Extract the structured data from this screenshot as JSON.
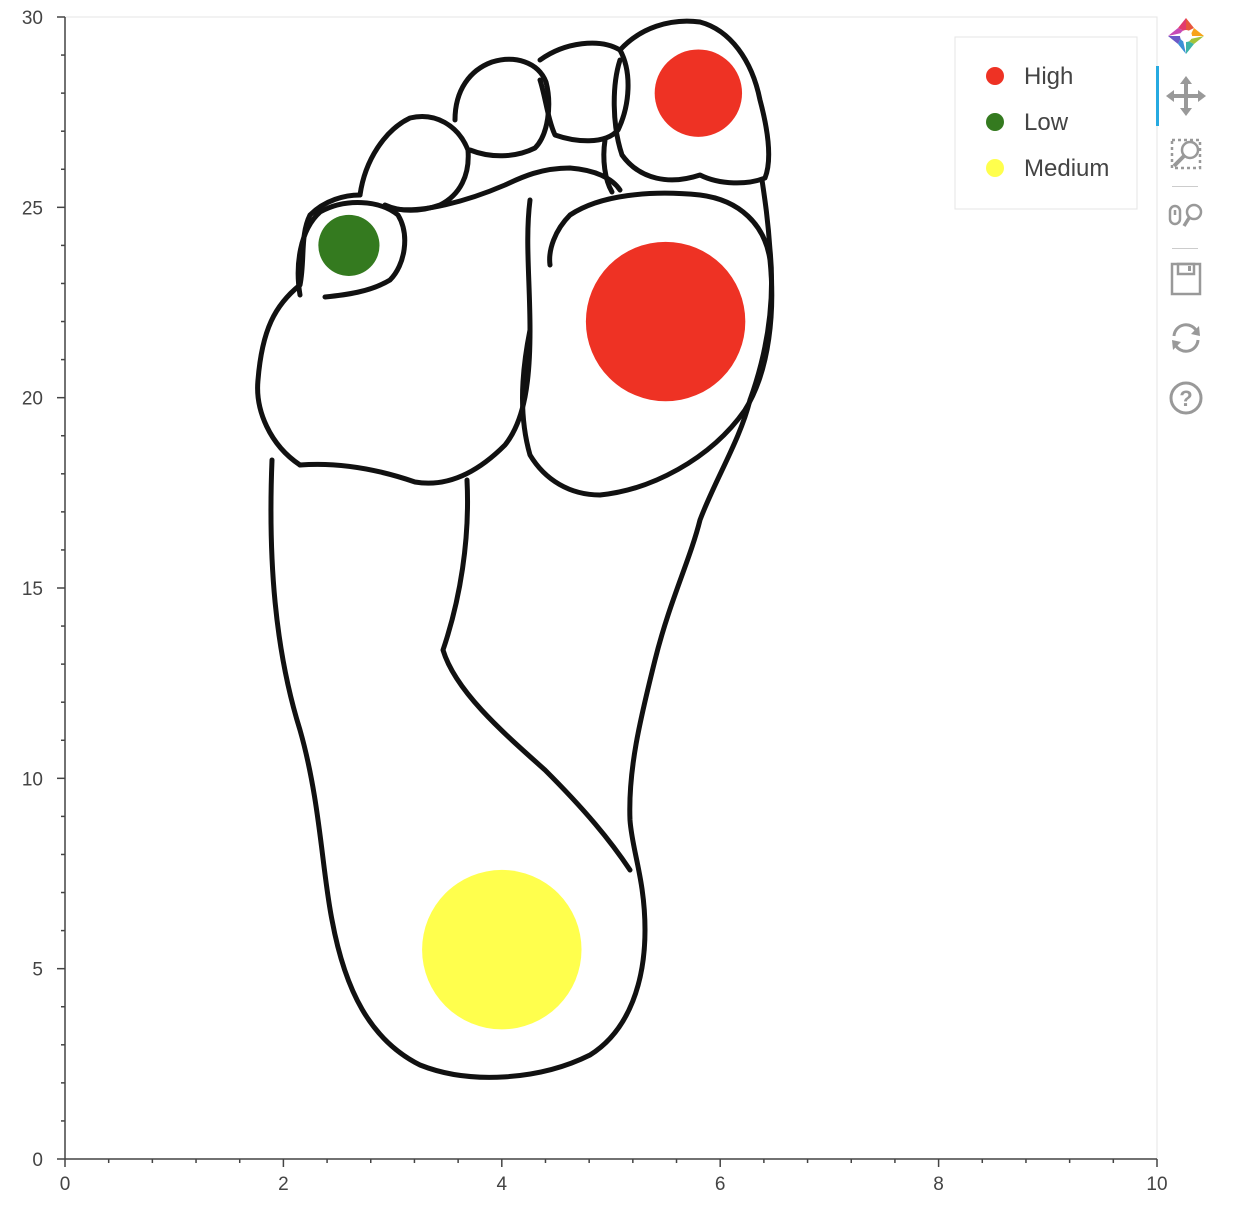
{
  "chart_data": {
    "type": "scatter",
    "title": "",
    "xlabel": "",
    "ylabel": "",
    "xlim": [
      0,
      10
    ],
    "ylim": [
      0,
      30
    ],
    "x_ticks": [
      0,
      2,
      4,
      6,
      8,
      10
    ],
    "y_ticks": [
      0,
      5,
      10,
      15,
      20,
      25,
      30
    ],
    "background_image": "foot-sole-outline",
    "points": [
      {
        "x": 5.8,
        "y": 28,
        "radius": 0.4,
        "level": "High",
        "color": "#ee3224"
      },
      {
        "x": 2.6,
        "y": 24,
        "radius": 0.28,
        "level": "Low",
        "color": "#347a1f"
      },
      {
        "x": 5.5,
        "y": 22,
        "radius": 0.73,
        "level": "High",
        "color": "#ee3224"
      },
      {
        "x": 4.0,
        "y": 5.5,
        "radius": 0.73,
        "level": "Medium",
        "color": "#ffff4d"
      }
    ],
    "legend": {
      "position": "top-right",
      "entries": [
        {
          "label": "High",
          "color": "#ee3224"
        },
        {
          "label": "Low",
          "color": "#347a1f"
        },
        {
          "label": "Medium",
          "color": "#ffff4d"
        }
      ]
    }
  },
  "toolbar": {
    "tools": [
      {
        "name": "bokeh-logo-icon"
      },
      {
        "name": "pan-tool-icon",
        "active": true
      },
      {
        "name": "box-zoom-tool-icon"
      },
      {
        "name": "wheel-zoom-tool-icon"
      },
      {
        "name": "save-tool-icon"
      },
      {
        "name": "reset-tool-icon"
      },
      {
        "name": "help-tool-icon"
      }
    ]
  },
  "colors": {
    "axis": "#444444",
    "frame": "#e5e5e5",
    "outline": "#111111"
  }
}
